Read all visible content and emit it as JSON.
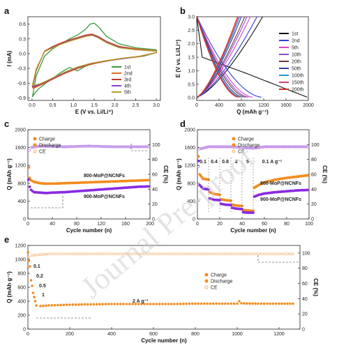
{
  "watermark": "Journal Pre-proof",
  "panels": {
    "a": {
      "label": "a"
    },
    "b": {
      "label": "b"
    },
    "c": {
      "label": "c"
    },
    "d": {
      "label": "d"
    },
    "e": {
      "label": "e"
    }
  },
  "chart_data": [
    {
      "id": "a",
      "type": "line",
      "xlabel": "E (V vs. Li/Li⁺)",
      "ylabel": "I (mA)",
      "xlim": [
        -0.1,
        3.1
      ],
      "ylim": [
        -0.95,
        0.75
      ],
      "xticks": [
        0.0,
        0.5,
        1.0,
        1.5,
        2.0,
        2.5,
        3.0
      ],
      "yticks": [
        -0.9,
        -0.6,
        -0.3,
        0.0,
        0.3,
        0.6
      ],
      "ytick_labels": [
        "-0.9",
        "-0.6",
        "-0.3",
        "0.0",
        "0.3",
        "0.6"
      ],
      "xtick_labels": [
        "0.0",
        "0.5",
        "1.0",
        "1.5",
        "2.0",
        "2.5",
        "3.0"
      ],
      "legend_position": "bottom-right",
      "series": [
        {
          "name": "1st",
          "color": "#3a9a3a",
          "x": [
            0.01,
            0.1,
            0.3,
            0.5,
            0.7,
            0.9,
            1.1,
            1.3,
            1.4,
            1.5,
            1.6,
            1.8,
            2.1,
            2.5,
            3.0,
            3.0,
            2.7,
            2.4,
            2.0,
            1.6,
            1.3,
            1.1,
            0.9,
            0.7,
            0.5,
            0.3,
            0.15,
            0.05,
            0.01
          ],
          "y": [
            -0.88,
            -0.45,
            -0.05,
            0.1,
            0.2,
            0.3,
            0.38,
            0.5,
            0.6,
            0.62,
            0.55,
            0.35,
            0.2,
            0.12,
            0.08,
            0.02,
            -0.05,
            -0.08,
            -0.12,
            -0.18,
            -0.25,
            -0.35,
            -0.28,
            -0.38,
            -0.5,
            -0.62,
            -0.72,
            -0.82,
            -0.88
          ]
        },
        {
          "name": "2nd",
          "color": "#e06a2a",
          "x": [
            0.01,
            0.1,
            0.3,
            0.5,
            0.7,
            0.9,
            1.1,
            1.3,
            1.45,
            1.6,
            1.8,
            2.1,
            2.5,
            3.0,
            3.0,
            2.6,
            2.2,
            1.8,
            1.4,
            1.1,
            0.8,
            0.6,
            0.4,
            0.2,
            0.05,
            0.01
          ],
          "y": [
            -0.7,
            -0.35,
            0.05,
            0.15,
            0.22,
            0.28,
            0.33,
            0.38,
            0.4,
            0.35,
            0.25,
            0.15,
            0.1,
            0.06,
            0.02,
            -0.06,
            -0.1,
            -0.15,
            -0.22,
            -0.3,
            -0.4,
            -0.48,
            -0.56,
            -0.64,
            -0.7,
            -0.7
          ]
        },
        {
          "name": "3rd",
          "color": "#c0392b",
          "x": [
            0.01,
            0.1,
            0.3,
            0.5,
            0.7,
            0.9,
            1.1,
            1.3,
            1.45,
            1.6,
            1.8,
            2.1,
            2.5,
            3.0,
            3.0,
            2.6,
            2.2,
            1.8,
            1.4,
            1.1,
            0.8,
            0.6,
            0.4,
            0.2,
            0.05,
            0.01
          ],
          "y": [
            -0.68,
            -0.33,
            0.05,
            0.14,
            0.21,
            0.27,
            0.32,
            0.37,
            0.39,
            0.34,
            0.24,
            0.14,
            0.09,
            0.05,
            0.02,
            -0.05,
            -0.1,
            -0.15,
            -0.21,
            -0.29,
            -0.39,
            -0.47,
            -0.55,
            -0.63,
            -0.68,
            -0.68
          ]
        },
        {
          "name": "4th",
          "color": "#8a3fd1",
          "x": [
            0.01,
            0.1,
            0.3,
            0.5,
            0.7,
            0.9,
            1.1,
            1.3,
            1.45,
            1.6,
            1.8,
            2.1,
            2.5,
            3.0,
            3.0,
            2.6,
            2.2,
            1.8,
            1.4,
            1.1,
            0.8,
            0.6,
            0.4,
            0.2,
            0.05,
            0.01
          ],
          "y": [
            -0.66,
            -0.32,
            0.04,
            0.13,
            0.2,
            0.26,
            0.31,
            0.36,
            0.38,
            0.33,
            0.23,
            0.13,
            0.08,
            0.05,
            0.02,
            -0.05,
            -0.1,
            -0.14,
            -0.2,
            -0.28,
            -0.38,
            -0.46,
            -0.54,
            -0.62,
            -0.66,
            -0.66
          ]
        },
        {
          "name": "5th",
          "color": "#b8a020",
          "x": [
            0.01,
            0.1,
            0.3,
            0.5,
            0.7,
            0.9,
            1.1,
            1.3,
            1.45,
            1.6,
            1.8,
            2.1,
            2.5,
            3.0,
            3.0,
            2.6,
            2.2,
            1.8,
            1.4,
            1.1,
            0.8,
            0.6,
            0.4,
            0.2,
            0.05,
            0.01
          ],
          "y": [
            -0.64,
            -0.31,
            0.04,
            0.12,
            0.19,
            0.25,
            0.3,
            0.35,
            0.37,
            0.32,
            0.22,
            0.12,
            0.08,
            0.05,
            0.02,
            -0.05,
            -0.09,
            -0.14,
            -0.2,
            -0.27,
            -0.37,
            -0.45,
            -0.53,
            -0.61,
            -0.64,
            -0.64
          ]
        }
      ]
    },
    {
      "id": "b",
      "type": "line",
      "xlabel": "Q (mAh g⁻¹)",
      "ylabel": "E (V vs. Li/Li⁺)",
      "xlim": [
        0,
        2000
      ],
      "ylim": [
        -0.1,
        3.0
      ],
      "xticks": [
        0,
        400,
        800,
        1200,
        1600,
        2000
      ],
      "yticks": [
        0.0,
        0.5,
        1.0,
        1.5,
        2.0,
        2.5,
        3.0
      ],
      "xtick_labels": [
        "0",
        "400",
        "800",
        "1200",
        "1600",
        "2000"
      ],
      "ytick_labels": [
        "0.0",
        "0.5",
        "1.0",
        "1.5",
        "2.0",
        "2.5",
        "3.0"
      ],
      "legend_position": "right",
      "series": [
        {
          "name": "1st",
          "color": "#111111",
          "discharge_end": 1980,
          "charge_end": 1180
        },
        {
          "name": "2nd",
          "color": "#2f3fd6",
          "discharge_end": 1160,
          "charge_end": 1080
        },
        {
          "name": "5th",
          "color": "#e040c8",
          "discharge_end": 1000,
          "charge_end": 960
        },
        {
          "name": "10th",
          "color": "#8a4fd0",
          "discharge_end": 930,
          "charge_end": 900
        },
        {
          "name": "20th",
          "color": "#6b3a3a",
          "discharge_end": 880,
          "charge_end": 860
        },
        {
          "name": "50th",
          "color": "#3a3a9a",
          "discharge_end": 820,
          "charge_end": 800
        },
        {
          "name": "100th",
          "color": "#1f9ad6",
          "discharge_end": 780,
          "charge_end": 770
        },
        {
          "name": "150th",
          "color": "#d04070",
          "discharge_end": 760,
          "charge_end": 750
        },
        {
          "name": "200th",
          "color": "#d03020",
          "discharge_end": 740,
          "charge_end": 730
        }
      ]
    },
    {
      "id": "c",
      "type": "scatter",
      "xlabel": "Cycle number (n)",
      "ylabel": "Q (mAh g⁻¹)",
      "ylabel2": "CE (%)",
      "xlim": [
        0,
        200
      ],
      "ylim": [
        0,
        2000
      ],
      "y2lim": [
        0,
        120
      ],
      "xticks": [
        0,
        40,
        80,
        120,
        160,
        200
      ],
      "yticks": [
        0,
        400,
        800,
        1200,
        1600,
        2000
      ],
      "y2ticks": [
        0,
        20,
        40,
        60,
        80,
        100
      ],
      "xtick_labels": [
        "0",
        "40",
        "80",
        "120",
        "160",
        "200"
      ],
      "ytick_labels": [
        "0",
        "400",
        "800",
        "1200",
        "1600",
        "2000"
      ],
      "y2tick_labels": [
        "0",
        "20",
        "40",
        "60",
        "80",
        "100"
      ],
      "legend_position": "top-left",
      "legend": [
        "Charge",
        "Discharge",
        "CE"
      ],
      "annotations": [
        "800-MoP@NCNFs",
        "900-MoP@NCNFs"
      ],
      "series": [
        {
          "name": "800-MoP@NCNFs",
          "color": "#f28c1e",
          "x": [
            1,
            3,
            5,
            10,
            20,
            30,
            40,
            60,
            80,
            100,
            120,
            140,
            160,
            180,
            200
          ],
          "y": [
            1150,
            920,
            870,
            830,
            800,
            790,
            790,
            800,
            810,
            820,
            830,
            840,
            850,
            860,
            870
          ]
        },
        {
          "name": "900-MoP@NCNFs",
          "color": "#8a2be2",
          "x": [
            1,
            3,
            5,
            10,
            20,
            30,
            40,
            60,
            80,
            100,
            120,
            140,
            160,
            180,
            200
          ],
          "y": [
            880,
            720,
            650,
            600,
            590,
            580,
            590,
            600,
            620,
            640,
            660,
            680,
            700,
            720,
            730
          ]
        },
        {
          "name": "CE",
          "color": "#b070e0",
          "x": [
            1,
            2,
            5,
            20,
            60,
            100,
            140,
            180,
            200
          ],
          "y": [
            70,
            92,
            96,
            98,
            97,
            98,
            97,
            97,
            97
          ]
        }
      ]
    },
    {
      "id": "d",
      "type": "scatter",
      "xlabel": "Cycle number (n)",
      "ylabel": "Q (mAh g⁻¹)",
      "ylabel2": "CE (%)",
      "xlim": [
        0,
        100
      ],
      "ylim": [
        0,
        2000
      ],
      "y2lim": [
        0,
        120
      ],
      "xticks": [
        0,
        20,
        40,
        60,
        80,
        100
      ],
      "yticks": [
        0,
        400,
        800,
        1200,
        1600,
        2000
      ],
      "y2ticks": [
        0,
        20,
        40,
        60,
        80,
        100
      ],
      "xtick_labels": [
        "0",
        "20",
        "40",
        "60",
        "80",
        "100"
      ],
      "ytick_labels": [
        "0",
        "400",
        "800",
        "1200",
        "1600",
        "2000"
      ],
      "y2tick_labels": [
        "0",
        "20",
        "40",
        "60",
        "80",
        "100"
      ],
      "legend_position": "top-center",
      "legend": [
        "Charge",
        "Discharge",
        "CE"
      ],
      "rate_labels": [
        "0.1",
        "0.4",
        "0.8",
        "2",
        "5",
        "0.1 A g⁻¹"
      ],
      "annotations": [
        "800-MoP@NCNFs",
        "900-MoP@NCNFs"
      ],
      "series": [
        {
          "name": "800-MoP@NCNFs",
          "color": "#f28c1e",
          "x": [
            1,
            2,
            5,
            10,
            11,
            15,
            20,
            21,
            25,
            30,
            31,
            35,
            40,
            41,
            45,
            50,
            51,
            55,
            60,
            70,
            80,
            90,
            100
          ],
          "y": [
            1400,
            1000,
            900,
            880,
            600,
            560,
            540,
            440,
            420,
            410,
            320,
            300,
            290,
            200,
            190,
            180,
            700,
            760,
            820,
            880,
            920,
            950,
            980
          ]
        },
        {
          "name": "900-MoP@NCNFs",
          "color": "#8a2be2",
          "x": [
            1,
            2,
            5,
            10,
            11,
            15,
            20,
            21,
            25,
            30,
            31,
            35,
            40,
            41,
            45,
            50,
            51,
            55,
            60,
            70,
            80,
            90,
            100
          ],
          "y": [
            1300,
            760,
            680,
            660,
            460,
            430,
            420,
            340,
            320,
            310,
            250,
            230,
            220,
            150,
            140,
            140,
            500,
            540,
            570,
            600,
            620,
            640,
            650
          ]
        },
        {
          "name": "CE",
          "color": "#b070e0",
          "x": [
            1,
            2,
            10,
            20,
            30,
            40,
            50,
            60,
            80,
            100
          ],
          "y": [
            70,
            94,
            97,
            97,
            97,
            96,
            95,
            97,
            97,
            97
          ]
        }
      ]
    },
    {
      "id": "e",
      "type": "scatter",
      "xlabel": "Cycle number (n)",
      "ylabel": "Q (mAh g⁻¹)",
      "ylabel2": "CE (%)",
      "xlim": [
        0,
        1300
      ],
      "ylim": [
        0,
        1200
      ],
      "y2lim": [
        0,
        110
      ],
      "xticks": [
        0,
        200,
        400,
        600,
        800,
        1000,
        1200
      ],
      "yticks": [
        0,
        200,
        400,
        600,
        800,
        1000,
        1200
      ],
      "y2ticks": [
        0,
        20,
        40,
        60,
        80,
        100
      ],
      "xtick_labels": [
        "0",
        "200",
        "400",
        "600",
        "800",
        "1000",
        "1200"
      ],
      "ytick_labels": [
        "0",
        "200",
        "400",
        "600",
        "800",
        "1000",
        "1200"
      ],
      "y2tick_labels": [
        "0",
        "20",
        "40",
        "60",
        "80",
        "100"
      ],
      "legend_position": "center-right",
      "legend": [
        "Charge",
        "Discharge",
        "CE"
      ],
      "rate_labels": [
        "0.1",
        "0.2",
        "0.5",
        "1",
        "2 A g⁻¹"
      ],
      "series": [
        {
          "name": "Discharge",
          "color": "#f28c1e",
          "x": [
            1,
            5,
            10,
            15,
            20,
            25,
            30,
            35,
            40,
            60,
            100,
            200,
            300,
            400,
            500,
            600,
            700,
            800,
            900,
            1000,
            1010,
            1020,
            1100,
            1200,
            1280
          ],
          "y": [
            1100,
            980,
            900,
            700,
            620,
            520,
            460,
            400,
            340,
            330,
            340,
            350,
            355,
            360,
            360,
            360,
            360,
            365,
            365,
            365,
            400,
            370,
            365,
            365,
            365
          ]
        },
        {
          "name": "CE",
          "color": "#f5a050",
          "x": [
            1,
            5,
            20,
            100,
            300,
            600,
            900,
            1200,
            1280
          ],
          "y": [
            80,
            95,
            97,
            99,
            99,
            99,
            99,
            99,
            99
          ]
        }
      ]
    }
  ]
}
